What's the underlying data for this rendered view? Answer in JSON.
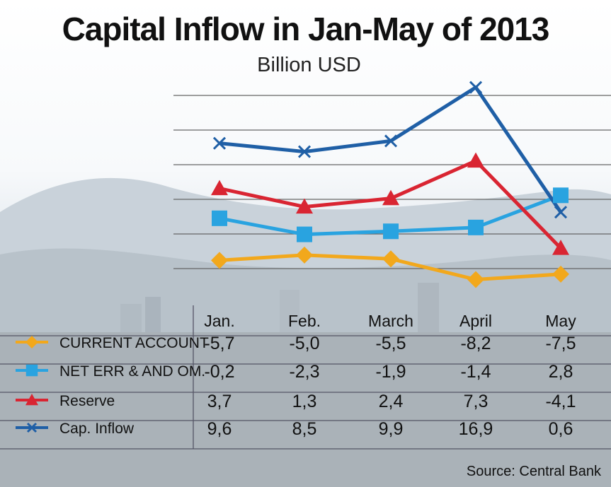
{
  "chart_data": {
    "type": "line",
    "title": "Capital Inflow in Jan-May of 2013",
    "subtitle": "Billion USD",
    "categories": [
      "Jan.",
      "Feb.",
      "March",
      "April",
      "May"
    ],
    "series": [
      {
        "name": "CURRENT ACCOUNT",
        "values_text": [
          "-5,7",
          "-5,0",
          "-5,5",
          "-8,2",
          "-7,5"
        ],
        "values": [
          -5.7,
          -5.0,
          -5.5,
          -8.2,
          -7.5
        ],
        "color": "#f2a81c",
        "marker": "diamond"
      },
      {
        "name": "NET ERR & AND OM.",
        "values_text": [
          "-0,2",
          "-2,3",
          "-1,9",
          "-1,4",
          "2,8"
        ],
        "values": [
          -0.2,
          -2.3,
          -1.9,
          -1.4,
          2.8
        ],
        "color": "#29a3e0",
        "marker": "square"
      },
      {
        "name": "Reserve",
        "values_text": [
          "3,7",
          "1,3",
          "2,4",
          "7,3",
          "-4,1"
        ],
        "values": [
          3.7,
          1.3,
          2.4,
          7.3,
          -4.1
        ],
        "color": "#d92532",
        "marker": "triangle"
      },
      {
        "name": "Cap. Inflow",
        "values_text": [
          "9,6",
          "8,5",
          "9,9",
          "16,9",
          "0,6"
        ],
        "values": [
          9.6,
          8.5,
          9.9,
          16.9,
          0.6
        ],
        "color": "#1f5fa6",
        "marker": "x"
      }
    ],
    "ylim": [
      -10,
      20
    ],
    "grid": true,
    "source": "Source: Central Bank"
  }
}
